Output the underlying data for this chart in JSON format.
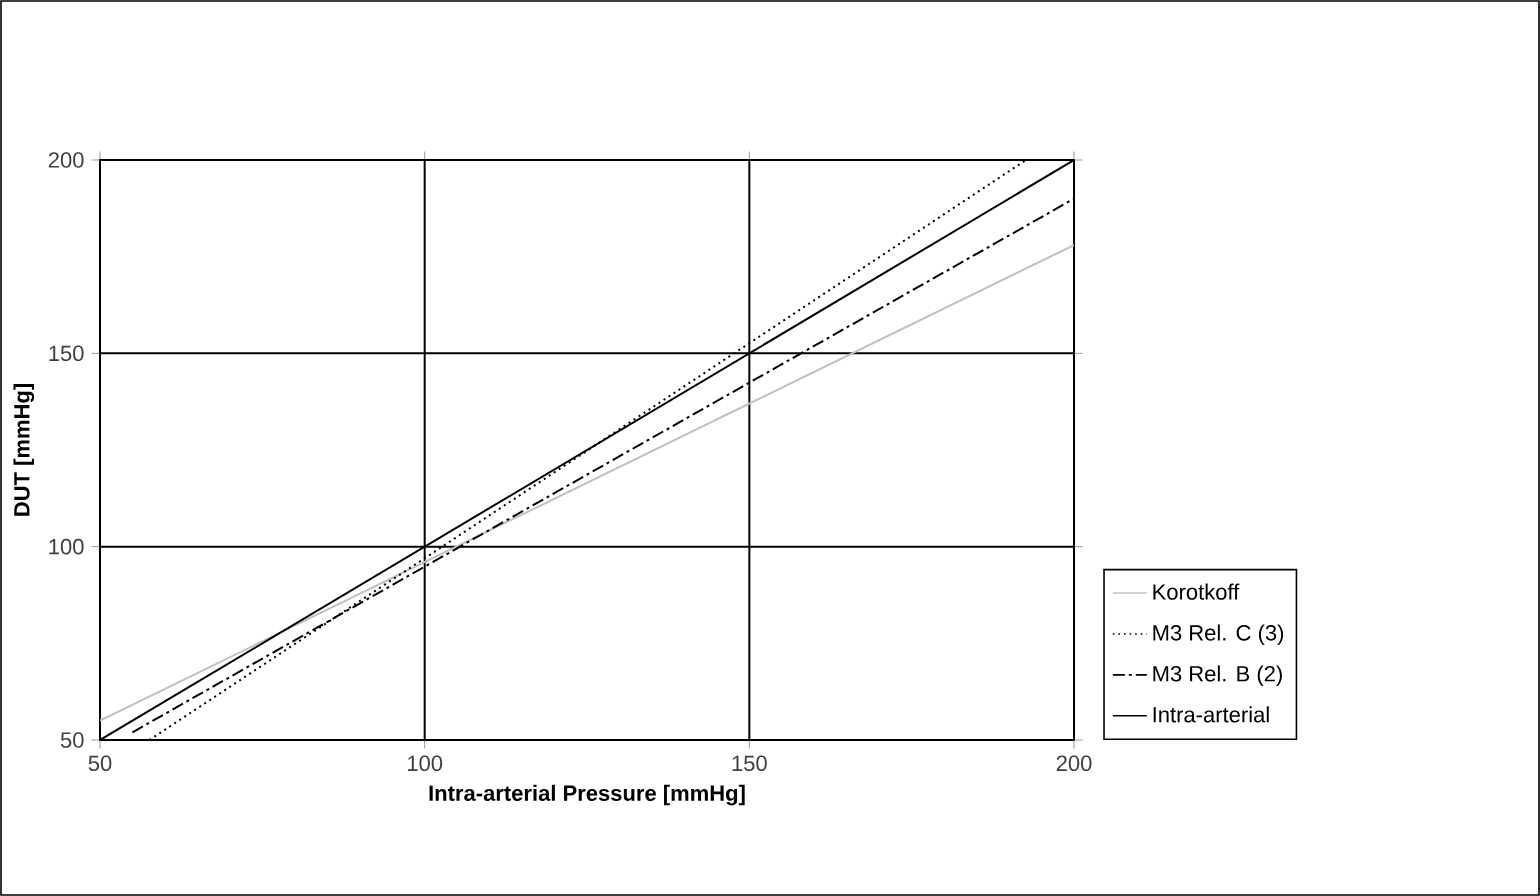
{
  "chart_data": {
    "type": "line",
    "xlabel": "Intra-arterial Pressure [mmHg]",
    "ylabel": "DUT [mmHg]",
    "xlim": [
      50,
      200
    ],
    "ylim": [
      50,
      200
    ],
    "xticks": [
      50,
      100,
      150,
      200
    ],
    "yticks": [
      50,
      100,
      150,
      200
    ],
    "grid": true,
    "legend": "right",
    "marker": "none",
    "series": [
      {
        "name": "Korotkoff",
        "color": "#c0c0c0",
        "line_style": "solid",
        "x": [
          50,
          200
        ],
        "values": [
          55,
          178
        ]
      },
      {
        "name": "M3 Rel. C (3)",
        "color": "#000000",
        "line_style": "dotted",
        "x": [
          57.6,
          100,
          192.6
        ],
        "values": [
          50,
          97,
          200
        ]
      },
      {
        "name": "M3 Rel. B (2)",
        "color": "#000000",
        "line_style": "dashdot",
        "x": [
          55,
          200
        ],
        "values": [
          52,
          190
        ]
      },
      {
        "name": "Intra-arterial",
        "color": "#000000",
        "line_style": "solid",
        "x": [
          50,
          200
        ],
        "values": [
          50,
          200
        ]
      }
    ]
  }
}
